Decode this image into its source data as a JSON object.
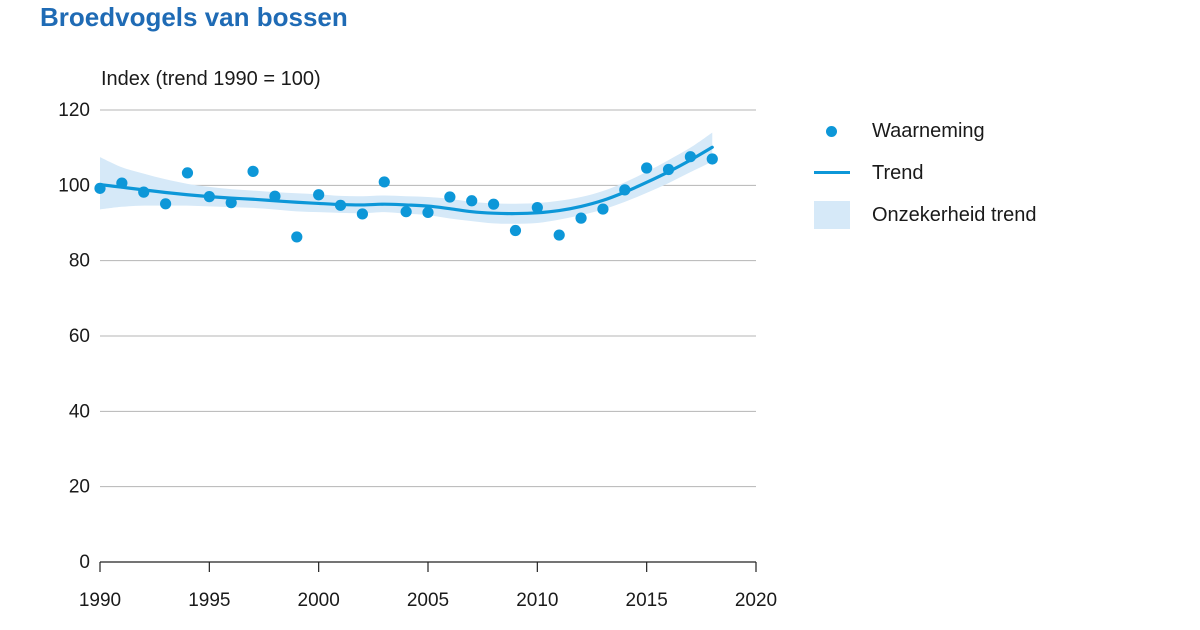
{
  "colors": {
    "title": "#1f6bb5",
    "points": "#0d97d8",
    "trend": "#0d97d8",
    "band": "#d6e9f8",
    "grid": "#b5b5b5"
  },
  "chart_data": {
    "type": "scatter",
    "title": "Broedvogels van bossen",
    "ylabel": "Index (trend 1990 = 100)",
    "xlabel": "",
    "xlim": [
      1990,
      2020
    ],
    "ylim": [
      0,
      120
    ],
    "x_ticks": [
      "1990",
      "1995",
      "2000",
      "2005",
      "2010",
      "2015",
      "2020"
    ],
    "y_ticks": [
      "0",
      "20",
      "40",
      "60",
      "80",
      "100",
      "120"
    ],
    "grid": "horizontal",
    "legend_position": "right",
    "series": [
      {
        "name": "Waarneming",
        "kind": "scatter",
        "x": [
          1990,
          1991,
          1992,
          1993,
          1994,
          1995,
          1996,
          1997,
          1998,
          1999,
          2000,
          2001,
          2002,
          2003,
          2004,
          2005,
          2006,
          2007,
          2008,
          2009,
          2010,
          2011,
          2012,
          2013,
          2014,
          2015,
          2016,
          2017,
          2018
        ],
        "y": [
          99.2,
          100.6,
          98.2,
          95.1,
          103.3,
          97.0,
          95.4,
          103.7,
          97.1,
          86.3,
          97.5,
          94.7,
          92.4,
          100.9,
          93.0,
          92.8,
          96.9,
          95.9,
          95.0,
          88.0,
          94.1,
          86.8,
          91.3,
          93.7,
          98.8,
          104.6,
          104.2,
          107.6,
          107.0
        ]
      },
      {
        "name": "Trend",
        "kind": "line",
        "x": [
          1990,
          1991,
          1992,
          1993,
          1994,
          1995,
          1996,
          1997,
          1998,
          1999,
          2000,
          2001,
          2002,
          2003,
          2004,
          2005,
          2006,
          2007,
          2008,
          2009,
          2010,
          2011,
          2012,
          2013,
          2014,
          2015,
          2016,
          2017,
          2018
        ],
        "y": [
          100.2,
          99.5,
          98.8,
          98.1,
          97.5,
          97.0,
          96.6,
          96.3,
          95.9,
          95.5,
          95.2,
          94.9,
          94.8,
          95.0,
          94.8,
          94.5,
          93.8,
          93.0,
          92.6,
          92.5,
          92.7,
          93.3,
          94.4,
          96.0,
          98.2,
          100.8,
          103.6,
          106.7,
          110.1
        ]
      },
      {
        "name": "Onzekerheid trend",
        "kind": "band",
        "x": [
          1990,
          1991,
          1992,
          1993,
          1994,
          1995,
          1996,
          1997,
          1998,
          1999,
          2000,
          2001,
          2002,
          2003,
          2004,
          2005,
          2006,
          2007,
          2008,
          2009,
          2010,
          2011,
          2012,
          2013,
          2014,
          2015,
          2016,
          2017,
          2018
        ],
        "lower": [
          93.6,
          94.3,
          94.6,
          94.6,
          94.6,
          94.4,
          94.2,
          94.0,
          93.6,
          93.1,
          92.9,
          92.7,
          92.6,
          92.9,
          92.5,
          92.1,
          91.2,
          90.5,
          89.9,
          89.8,
          90.0,
          90.9,
          92.1,
          93.6,
          95.6,
          98.0,
          100.6,
          103.5,
          106.3
        ],
        "upper": [
          107.5,
          104.8,
          103.1,
          101.6,
          100.4,
          99.6,
          99.0,
          98.6,
          98.2,
          97.9,
          97.6,
          97.2,
          97.1,
          97.3,
          97.1,
          96.9,
          96.4,
          95.6,
          95.2,
          95.1,
          95.3,
          95.9,
          96.9,
          98.5,
          100.8,
          103.6,
          106.7,
          110.0,
          114.0
        ]
      }
    ]
  }
}
